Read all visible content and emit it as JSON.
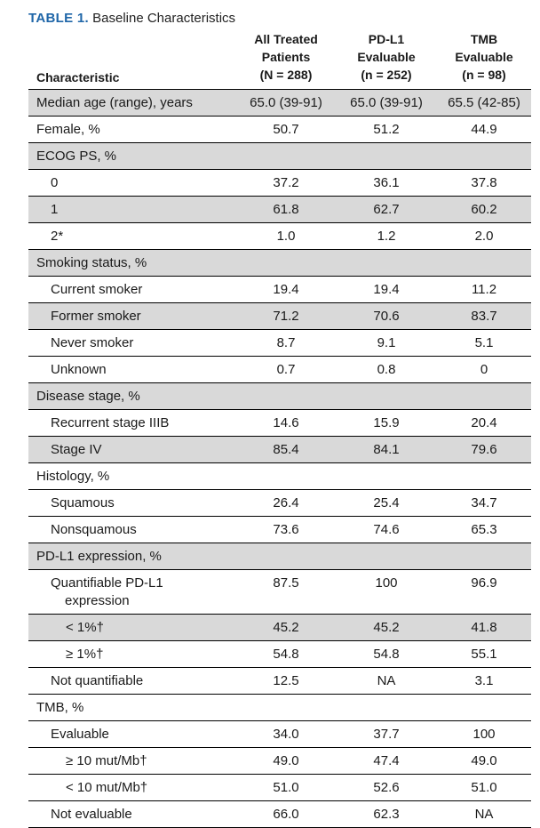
{
  "caption": {
    "label": "TABLE 1.",
    "title": "Baseline Characteristics"
  },
  "header": {
    "characteristic": "Characteristic",
    "col1": [
      "All Treated",
      "Patients",
      "(N = 288)"
    ],
    "col2": [
      "PD-L1",
      "Evaluable",
      "(n = 252)"
    ],
    "col3": [
      "TMB",
      "Evaluable",
      "(n = 98)"
    ]
  },
  "rows": [
    {
      "label": "Median age (range), years",
      "indent": 0,
      "shade": true,
      "v1": "65.0 (39-91)",
      "v2": "65.0 (39-91)",
      "v3": "65.5 (42-85)"
    },
    {
      "label": "Female, %",
      "indent": 0,
      "shade": false,
      "v1": "50.7",
      "v2": "51.2",
      "v3": "44.9"
    },
    {
      "label": "ECOG PS, %",
      "indent": 0,
      "shade": true,
      "v1": "",
      "v2": "",
      "v3": ""
    },
    {
      "label": "0",
      "indent": 1,
      "shade": false,
      "v1": "37.2",
      "v2": "36.1",
      "v3": "37.8"
    },
    {
      "label": "1",
      "indent": 1,
      "shade": true,
      "v1": "61.8",
      "v2": "62.7",
      "v3": "60.2"
    },
    {
      "label": "2*",
      "indent": 1,
      "shade": false,
      "v1": "1.0",
      "v2": "1.2",
      "v3": "2.0"
    },
    {
      "label": "Smoking status, %",
      "indent": 0,
      "shade": true,
      "v1": "",
      "v2": "",
      "v3": ""
    },
    {
      "label": "Current smoker",
      "indent": 1,
      "shade": false,
      "v1": "19.4",
      "v2": "19.4",
      "v3": "11.2"
    },
    {
      "label": "Former smoker",
      "indent": 1,
      "shade": true,
      "v1": "71.2",
      "v2": "70.6",
      "v3": "83.7"
    },
    {
      "label": "Never smoker",
      "indent": 1,
      "shade": false,
      "v1": "8.7",
      "v2": "9.1",
      "v3": "5.1"
    },
    {
      "label": "Unknown",
      "indent": 1,
      "shade": false,
      "v1": "0.7",
      "v2": "0.8",
      "v3": "0"
    },
    {
      "label": "Disease stage, %",
      "indent": 0,
      "shade": true,
      "v1": "",
      "v2": "",
      "v3": ""
    },
    {
      "label": "Recurrent stage IIIB",
      "indent": 1,
      "shade": false,
      "v1": "14.6",
      "v2": "15.9",
      "v3": "20.4"
    },
    {
      "label": "Stage IV",
      "indent": 1,
      "shade": true,
      "v1": "85.4",
      "v2": "84.1",
      "v3": "79.6"
    },
    {
      "label": "Histology, %",
      "indent": 0,
      "shade": false,
      "v1": "",
      "v2": "",
      "v3": ""
    },
    {
      "label": "Squamous",
      "indent": 1,
      "shade": false,
      "v1": "26.4",
      "v2": "25.4",
      "v3": "34.7"
    },
    {
      "label": "Nonsquamous",
      "indent": 1,
      "shade": false,
      "v1": "73.6",
      "v2": "74.6",
      "v3": "65.3"
    },
    {
      "label": "PD-L1 expression, %",
      "indent": 0,
      "shade": true,
      "v1": "",
      "v2": "",
      "v3": ""
    },
    {
      "label": "Quantifiable PD-L1",
      "label2": "expression",
      "indent": 1,
      "shade": false,
      "tall": true,
      "v1": "87.5",
      "v2": "100",
      "v3": "96.9"
    },
    {
      "label": "< 1%†",
      "indent": 2,
      "shade": true,
      "v1": "45.2",
      "v2": "45.2",
      "v3": "41.8"
    },
    {
      "label": "≥ 1%†",
      "indent": 2,
      "shade": false,
      "v1": "54.8",
      "v2": "54.8",
      "v3": "55.1"
    },
    {
      "label": "Not quantifiable",
      "indent": 1,
      "shade": false,
      "v1": "12.5",
      "v2": "NA",
      "v3": "3.1"
    },
    {
      "label": "TMB, %",
      "indent": 0,
      "shade": false,
      "v1": "",
      "v2": "",
      "v3": ""
    },
    {
      "label": "Evaluable",
      "indent": 1,
      "shade": false,
      "v1": "34.0",
      "v2": "37.7",
      "v3": "100"
    },
    {
      "label": "≥ 10 mut/Mb†",
      "indent": 2,
      "shade": false,
      "v1": "49.0",
      "v2": "47.4",
      "v3": "49.0"
    },
    {
      "label": "< 10 mut/Mb†",
      "indent": 2,
      "shade": false,
      "v1": "51.0",
      "v2": "52.6",
      "v3": "51.0"
    },
    {
      "label": "Not evaluable",
      "indent": 1,
      "shade": false,
      "v1": "66.0",
      "v2": "62.3",
      "v3": "NA"
    }
  ]
}
